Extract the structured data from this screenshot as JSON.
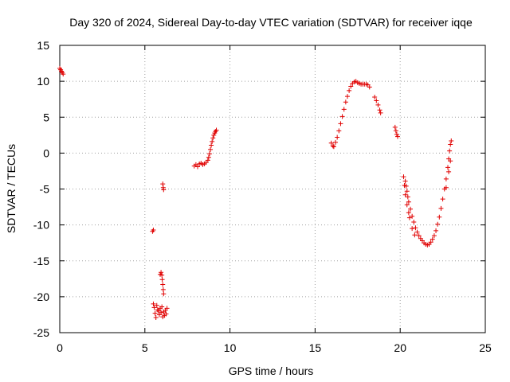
{
  "chart_data": {
    "type": "scatter",
    "title": "Day 320 of 2024, Sidereal Day-to-day VTEC variation (SDTVAR) for receiver iqqe",
    "xlabel": "GPS time / hours",
    "ylabel": "SDTVAR / TECUs",
    "xlim": [
      0,
      25
    ],
    "ylim": [
      -25,
      15
    ],
    "xticks": [
      0,
      5,
      10,
      15,
      20,
      25
    ],
    "yticks": [
      -25,
      -20,
      -15,
      -10,
      -5,
      0,
      5,
      10,
      15
    ],
    "grid": true,
    "marker": "+",
    "color": "#e00000",
    "series": [
      {
        "name": "SDTVAR",
        "points": [
          [
            0.0,
            11.8
          ],
          [
            0.05,
            11.6
          ],
          [
            0.1,
            11.4
          ],
          [
            0.15,
            11.2
          ],
          [
            0.2,
            11.0
          ],
          [
            5.45,
            -10.9
          ],
          [
            5.5,
            -10.7
          ],
          [
            5.5,
            -21.0
          ],
          [
            5.55,
            -21.5
          ],
          [
            5.6,
            -22.3
          ],
          [
            5.65,
            -22.9
          ],
          [
            5.7,
            -21.2
          ],
          [
            5.75,
            -21.8
          ],
          [
            5.8,
            -22.0
          ],
          [
            5.85,
            -22.5
          ],
          [
            5.9,
            -21.6
          ],
          [
            5.95,
            -22.2
          ],
          [
            6.0,
            -21.4
          ],
          [
            6.05,
            -22.8
          ],
          [
            6.1,
            -22.1
          ],
          [
            6.15,
            -22.6
          ],
          [
            6.2,
            -21.9
          ],
          [
            6.25,
            -22.4
          ],
          [
            6.3,
            -21.6
          ],
          [
            5.9,
            -16.9
          ],
          [
            5.95,
            -16.6
          ],
          [
            6.0,
            -17.0
          ],
          [
            6.02,
            -17.6
          ],
          [
            6.05,
            -18.3
          ],
          [
            6.08,
            -19.0
          ],
          [
            6.1,
            -19.6
          ],
          [
            6.05,
            -4.3
          ],
          [
            6.08,
            -4.8
          ],
          [
            6.1,
            -5.1
          ],
          [
            7.9,
            -1.8
          ],
          [
            8.0,
            -1.6
          ],
          [
            8.1,
            -1.9
          ],
          [
            8.2,
            -1.5
          ],
          [
            8.3,
            -1.4
          ],
          [
            8.4,
            -1.6
          ],
          [
            8.5,
            -1.5
          ],
          [
            8.6,
            -1.3
          ],
          [
            8.7,
            -1.0
          ],
          [
            8.75,
            -0.6
          ],
          [
            8.8,
            -0.1
          ],
          [
            8.85,
            0.5
          ],
          [
            8.9,
            1.1
          ],
          [
            8.95,
            1.6
          ],
          [
            9.0,
            2.1
          ],
          [
            9.05,
            2.5
          ],
          [
            9.1,
            2.8
          ],
          [
            9.15,
            3.0
          ],
          [
            9.2,
            3.2
          ],
          [
            15.95,
            1.4
          ],
          [
            16.05,
            1.0
          ],
          [
            16.1,
            0.9
          ],
          [
            16.2,
            1.5
          ],
          [
            16.3,
            2.2
          ],
          [
            16.4,
            3.1
          ],
          [
            16.5,
            4.1
          ],
          [
            16.6,
            5.1
          ],
          [
            16.7,
            6.1
          ],
          [
            16.8,
            7.1
          ],
          [
            16.9,
            7.9
          ],
          [
            17.0,
            8.7
          ],
          [
            17.1,
            9.3
          ],
          [
            17.2,
            9.7
          ],
          [
            17.3,
            9.9
          ],
          [
            17.4,
            10.0
          ],
          [
            17.5,
            9.8
          ],
          [
            17.6,
            9.7
          ],
          [
            17.7,
            9.6
          ],
          [
            17.8,
            9.6
          ],
          [
            17.9,
            9.6
          ],
          [
            18.0,
            9.6
          ],
          [
            18.1,
            9.5
          ],
          [
            18.2,
            9.2
          ],
          [
            18.5,
            7.8
          ],
          [
            18.6,
            7.3
          ],
          [
            18.7,
            6.7
          ],
          [
            18.8,
            6.0
          ],
          [
            18.85,
            5.6
          ],
          [
            19.7,
            3.6
          ],
          [
            19.75,
            3.1
          ],
          [
            19.8,
            2.6
          ],
          [
            19.85,
            2.3
          ],
          [
            20.2,
            -3.3
          ],
          [
            20.3,
            -3.9
          ],
          [
            20.35,
            -4.6
          ],
          [
            20.4,
            -5.3
          ],
          [
            20.45,
            -6.1
          ],
          [
            20.5,
            -6.8
          ],
          [
            20.6,
            -7.8
          ],
          [
            20.7,
            -8.8
          ],
          [
            20.8,
            -9.6
          ],
          [
            20.9,
            -10.4
          ],
          [
            21.0,
            -11.0
          ],
          [
            21.1,
            -11.5
          ],
          [
            21.2,
            -11.9
          ],
          [
            21.3,
            -12.2
          ],
          [
            21.4,
            -12.5
          ],
          [
            21.5,
            -12.7
          ],
          [
            21.6,
            -12.8
          ],
          [
            21.7,
            -12.7
          ],
          [
            21.8,
            -12.4
          ],
          [
            21.9,
            -12.0
          ],
          [
            22.0,
            -11.5
          ],
          [
            22.1,
            -10.8
          ],
          [
            22.2,
            -9.9
          ],
          [
            22.3,
            -8.9
          ],
          [
            22.4,
            -7.7
          ],
          [
            22.5,
            -6.4
          ],
          [
            22.6,
            -5.0
          ],
          [
            22.7,
            -3.6
          ],
          [
            22.8,
            -2.0
          ],
          [
            22.85,
            -0.8
          ],
          [
            22.9,
            0.3
          ],
          [
            22.95,
            1.2
          ],
          [
            23.0,
            1.7
          ],
          [
            20.25,
            -4.5
          ],
          [
            20.4,
            -7.2
          ],
          [
            20.55,
            -9.0
          ],
          [
            20.7,
            -10.5
          ],
          [
            20.85,
            -11.4
          ],
          [
            20.5,
            -8.3
          ],
          [
            20.3,
            -5.8
          ],
          [
            22.7,
            -4.8
          ],
          [
            22.85,
            -2.6
          ],
          [
            22.95,
            -1.1
          ]
        ]
      }
    ]
  }
}
